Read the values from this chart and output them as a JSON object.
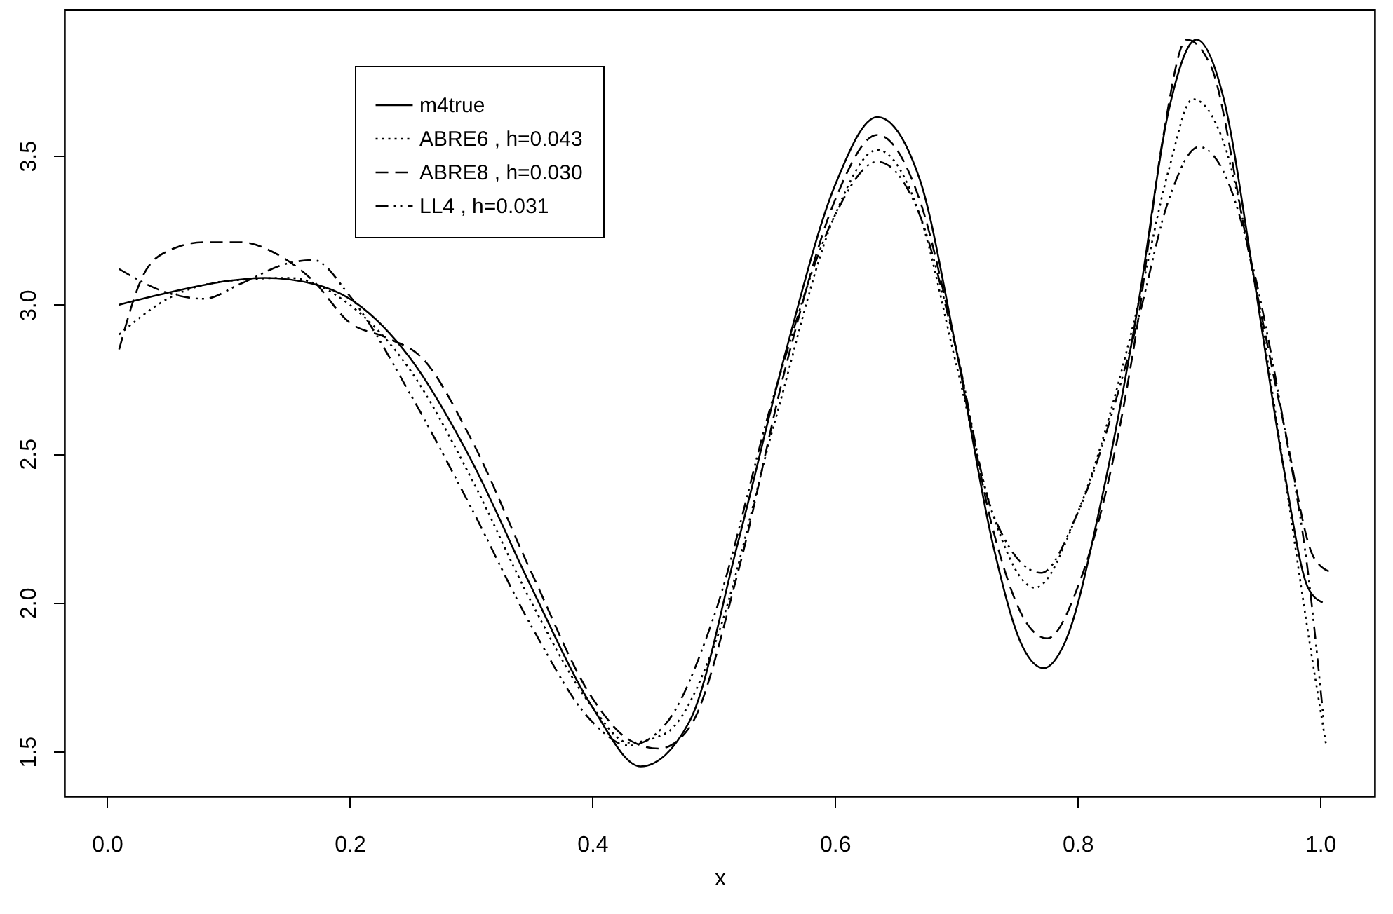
{
  "chart_data": {
    "type": "line",
    "xlabel": "x",
    "xlim": [
      -0.035,
      1.045
    ],
    "ylim": [
      1.35,
      3.99
    ],
    "xticks": [
      {
        "value": 0,
        "label": "0.0"
      },
      0.2,
      0.4,
      0.6,
      0.8,
      {
        "value": 1,
        "label": "1.0"
      }
    ],
    "yticks": [
      1.5,
      {
        "value": 2,
        "label": "2.0"
      },
      2.5,
      {
        "value": 3,
        "label": "3.0"
      },
      3.5
    ],
    "grid": false,
    "legend": "top left",
    "marker": "none",
    "series": [
      {
        "name": "m4true",
        "color": "#000000",
        "line_style": "solid",
        "x": [
          0.01,
          0.05,
          0.1,
          0.13,
          0.17,
          0.2,
          0.25,
          0.3,
          0.35,
          0.4,
          0.44,
          0.48,
          0.52,
          0.56,
          0.6,
          0.635,
          0.67,
          0.7,
          0.73,
          0.755,
          0.772,
          0.79,
          0.82,
          0.85,
          0.875,
          0.898,
          0.92,
          0.945,
          0.97,
          0.99,
          1.002
        ],
        "values": [
          3.0,
          3.04,
          3.08,
          3.09,
          3.07,
          3.02,
          2.82,
          2.48,
          2.05,
          1.65,
          1.45,
          1.6,
          2.2,
          2.85,
          3.4,
          3.63,
          3.42,
          2.85,
          2.2,
          1.85,
          1.78,
          1.87,
          2.35,
          3.0,
          3.65,
          3.89,
          3.7,
          3.1,
          2.45,
          2.05,
          2.0
        ]
      },
      {
        "name": "ABRE6 , h=0.043",
        "color": "#000000",
        "line_style": "dotted",
        "x": [
          0.01,
          0.05,
          0.1,
          0.15,
          0.2,
          0.25,
          0.3,
          0.35,
          0.4,
          0.43,
          0.46,
          0.5,
          0.55,
          0.6,
          0.635,
          0.67,
          0.7,
          0.73,
          0.765,
          0.8,
          0.85,
          0.875,
          0.895,
          0.92,
          0.945,
          0.97,
          0.99,
          1.005
        ],
        "values": [
          2.9,
          3.02,
          3.08,
          3.09,
          3.0,
          2.78,
          2.42,
          2.0,
          1.65,
          1.53,
          1.56,
          1.85,
          2.6,
          3.3,
          3.52,
          3.3,
          2.8,
          2.3,
          2.05,
          2.3,
          3.0,
          3.45,
          3.69,
          3.55,
          3.1,
          2.45,
          1.9,
          1.52
        ]
      },
      {
        "name": "ABRE8 , h=0.030",
        "color": "#000000",
        "line_style": "dashed",
        "x": [
          0.01,
          0.03,
          0.05,
          0.08,
          0.11,
          0.14,
          0.17,
          0.2,
          0.23,
          0.26,
          0.3,
          0.35,
          0.4,
          0.43,
          0.455,
          0.48,
          0.52,
          0.56,
          0.6,
          0.635,
          0.67,
          0.7,
          0.73,
          0.76,
          0.775,
          0.8,
          0.85,
          0.87,
          0.89,
          0.91,
          0.94,
          0.97,
          0.995,
          1.01
        ],
        "values": [
          2.85,
          3.1,
          3.18,
          3.21,
          3.21,
          3.17,
          3.08,
          2.94,
          2.89,
          2.82,
          2.55,
          2.1,
          1.68,
          1.54,
          1.51,
          1.58,
          2.1,
          2.8,
          3.35,
          3.57,
          3.35,
          2.85,
          2.25,
          1.92,
          1.88,
          2.05,
          2.95,
          3.55,
          3.89,
          3.8,
          3.2,
          2.6,
          2.15,
          2.1
        ]
      },
      {
        "name": " LL4  , h=0.031",
        "color": "#000000",
        "line_style": "dashdot",
        "x": [
          0.01,
          0.05,
          0.08,
          0.11,
          0.15,
          0.17,
          0.2,
          0.25,
          0.3,
          0.35,
          0.4,
          0.43,
          0.46,
          0.5,
          0.55,
          0.6,
          0.635,
          0.67,
          0.7,
          0.73,
          0.77,
          0.8,
          0.85,
          0.875,
          0.9,
          0.92,
          0.945,
          0.97,
          0.99,
          1.003
        ],
        "values": [
          3.12,
          3.04,
          3.02,
          3.07,
          3.14,
          3.15,
          3.03,
          2.7,
          2.32,
          1.92,
          1.6,
          1.52,
          1.59,
          1.95,
          2.7,
          3.3,
          3.48,
          3.3,
          2.85,
          2.3,
          2.1,
          2.3,
          2.95,
          3.35,
          3.53,
          3.45,
          3.12,
          2.6,
          2.1,
          1.6
        ]
      }
    ]
  }
}
